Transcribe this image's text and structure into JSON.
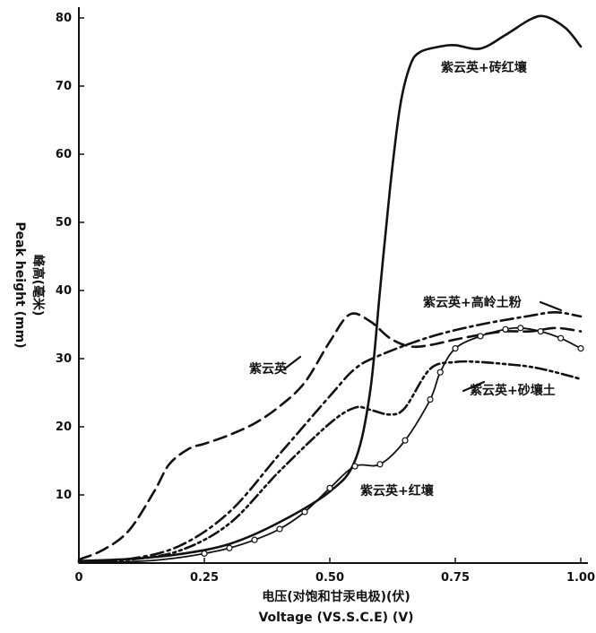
{
  "chart_data": {
    "type": "line",
    "title": "",
    "xlabel": "电压(对饱和甘汞电极)(伏) Voltage (VS.S.C.E) (V)",
    "xlabel_zh": "电压(对饱和甘汞电极)(伏)",
    "xlabel_en": "Voltage (VS.S.C.E) (V)",
    "ylabel": "Peak height (mm) 峰高(毫米)",
    "ylabel_en": "Peak height (mm)",
    "ylabel_zh": "峰高(毫米)",
    "xlim": [
      0,
      1.0
    ],
    "ylim": [
      0,
      80
    ],
    "x_ticks": [
      {
        "value": 0,
        "label": "0"
      },
      {
        "value": 0.25,
        "label": "0.25"
      },
      {
        "value": 0.5,
        "label": "0.50"
      },
      {
        "value": 0.75,
        "label": "0.75"
      },
      {
        "value": 1.0,
        "label": "1.00"
      }
    ],
    "y_ticks": [
      {
        "value": 10,
        "label": "10"
      },
      {
        "value": 20,
        "label": "20"
      },
      {
        "value": 30,
        "label": "30"
      },
      {
        "value": 40,
        "label": "40"
      },
      {
        "value": 50,
        "label": "50"
      },
      {
        "value": 60,
        "label": "60"
      },
      {
        "value": 70,
        "label": "70"
      },
      {
        "value": 80,
        "label": "80"
      }
    ],
    "grid": false,
    "legend": "none",
    "series": [
      {
        "name": "紫云英+砖红壤",
        "style": "solid",
        "color": "#111111",
        "x": [
          0,
          0.1,
          0.2,
          0.3,
          0.4,
          0.5,
          0.55,
          0.58,
          0.6,
          0.62,
          0.64,
          0.66,
          0.68,
          0.72,
          0.75,
          0.8,
          0.85,
          0.9,
          0.93,
          0.97,
          1.0
        ],
        "y": [
          0.3,
          0.6,
          1.3,
          2.8,
          6.0,
          10.5,
          15.0,
          25.0,
          40.0,
          55.0,
          67.0,
          73.0,
          75.0,
          75.8,
          76.0,
          75.5,
          77.5,
          79.8,
          80.2,
          78.5,
          75.8
        ]
      },
      {
        "name": "紫云英+高岭土粉",
        "style": "dash-dot",
        "color": "#111111",
        "x": [
          0,
          0.1,
          0.2,
          0.3,
          0.4,
          0.5,
          0.55,
          0.6,
          0.7,
          0.8,
          0.9,
          0.95,
          1.0
        ],
        "y": [
          0.2,
          0.6,
          2.5,
          7.5,
          16.0,
          24.5,
          28.5,
          30.5,
          33.2,
          35.0,
          36.3,
          36.8,
          36.2
        ]
      },
      {
        "name": "紫云英",
        "style": "dash",
        "color": "#111111",
        "x": [
          0,
          0.05,
          0.1,
          0.15,
          0.18,
          0.22,
          0.25,
          0.3,
          0.35,
          0.4,
          0.45,
          0.5,
          0.54,
          0.58,
          0.62,
          0.66,
          0.7,
          0.75,
          0.8,
          0.85,
          0.9,
          0.95,
          1.0
        ],
        "y": [
          0.5,
          2.0,
          4.8,
          10.5,
          14.5,
          16.8,
          17.5,
          18.8,
          20.5,
          23.0,
          26.5,
          32.5,
          36.5,
          35.5,
          33.0,
          31.8,
          32.0,
          32.8,
          33.5,
          34.0,
          34.0,
          34.5,
          34.0
        ]
      },
      {
        "name": "紫云英+砂壤土",
        "style": "dash-dot-dot",
        "color": "#111111",
        "x": [
          0,
          0.1,
          0.2,
          0.3,
          0.4,
          0.5,
          0.55,
          0.58,
          0.62,
          0.65,
          0.7,
          0.75,
          0.8,
          0.85,
          0.9,
          0.95,
          1.0
        ],
        "y": [
          0.2,
          0.5,
          1.8,
          5.8,
          13.5,
          20.5,
          22.8,
          22.5,
          21.8,
          22.8,
          28.5,
          29.5,
          29.5,
          29.2,
          28.8,
          28.0,
          27.0
        ]
      },
      {
        "name": "紫云英+红壤",
        "style": "solid-circles",
        "color": "#111111",
        "x": [
          0,
          0.05,
          0.1,
          0.15,
          0.2,
          0.25,
          0.3,
          0.35,
          0.4,
          0.45,
          0.5,
          0.55,
          0.6,
          0.65,
          0.7,
          0.72,
          0.75,
          0.8,
          0.85,
          0.88,
          0.92,
          0.96,
          1.0
        ],
        "y": [
          0,
          0.1,
          0.2,
          0.4,
          0.8,
          1.4,
          2.2,
          3.4,
          5.0,
          7.5,
          11.0,
          14.2,
          14.5,
          18.0,
          24.0,
          28.0,
          31.5,
          33.3,
          34.3,
          34.5,
          34.0,
          33.0,
          31.5
        ]
      }
    ],
    "annotations": [
      {
        "text": "紫云英+砖红壤",
        "series": "紫云英+砖红壤"
      },
      {
        "text": "紫云英+高岭土粉",
        "series": "紫云英+高岭土粉"
      },
      {
        "text": "紫云英",
        "series": "紫云英"
      },
      {
        "text": "紫云英+砂壤土",
        "series": "紫云英+砂壤土"
      },
      {
        "text": "紫云英+红壤",
        "series": "紫云英+红壤"
      }
    ]
  }
}
